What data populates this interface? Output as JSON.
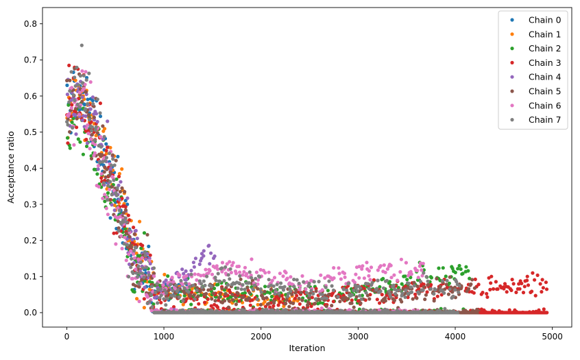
{
  "chart_data": {
    "type": "scatter",
    "title": "",
    "xlabel": "Iteration",
    "ylabel": "Acceptance ratio",
    "xlim": [
      -250,
      5200
    ],
    "ylim": [
      -0.04,
      0.845
    ],
    "xticks": [
      0,
      1000,
      2000,
      3000,
      4000,
      5000
    ],
    "xtick_labels": [
      "0",
      "1000",
      "2000",
      "3000",
      "4000",
      "5000"
    ],
    "yticks": [
      0.0,
      0.1,
      0.2,
      0.3,
      0.4,
      0.5,
      0.6,
      0.7,
      0.8
    ],
    "ytick_labels": [
      "0.0",
      "0.1",
      "0.2",
      "0.3",
      "0.4",
      "0.5",
      "0.6",
      "0.7",
      "0.8"
    ],
    "grid": false,
    "legend_position": "top-right",
    "series": [
      {
        "name": "Chain 0",
        "color": "#1f77b4",
        "last_iteration": 1250,
        "trend": [
          [
            0,
            0.58
          ],
          [
            150,
            0.58
          ],
          [
            300,
            0.5
          ],
          [
            500,
            0.35
          ],
          [
            700,
            0.17
          ],
          [
            900,
            0.06
          ],
          [
            1250,
            0.07
          ]
        ]
      },
      {
        "name": "Chain 1",
        "color": "#ff7f0e",
        "last_iteration": 2400,
        "trend": [
          [
            0,
            0.56
          ],
          [
            150,
            0.57
          ],
          [
            300,
            0.49
          ],
          [
            500,
            0.36
          ],
          [
            700,
            0.18
          ],
          [
            900,
            0.07
          ],
          [
            1500,
            0.05
          ],
          [
            2400,
            0.04
          ]
        ]
      },
      {
        "name": "Chain 2",
        "color": "#2ca02c",
        "last_iteration": 4150,
        "trend": [
          [
            0,
            0.52
          ],
          [
            150,
            0.55
          ],
          [
            300,
            0.45
          ],
          [
            500,
            0.3
          ],
          [
            700,
            0.14
          ],
          [
            900,
            0.06
          ],
          [
            2000,
            0.05
          ],
          [
            3000,
            0.05
          ],
          [
            3700,
            0.1
          ],
          [
            4150,
            0.11
          ]
        ]
      },
      {
        "name": "Chain 3",
        "color": "#d62728",
        "last_iteration": 4950,
        "trend": [
          [
            0,
            0.57
          ],
          [
            150,
            0.6
          ],
          [
            300,
            0.48
          ],
          [
            500,
            0.33
          ],
          [
            700,
            0.16
          ],
          [
            900,
            0.05
          ],
          [
            2000,
            0.03
          ],
          [
            3000,
            0.05
          ],
          [
            4000,
            0.07
          ],
          [
            4950,
            0.075
          ]
        ]
      },
      {
        "name": "Chain 4",
        "color": "#9467bd",
        "last_iteration": 1550,
        "trend": [
          [
            0,
            0.6
          ],
          [
            150,
            0.6
          ],
          [
            300,
            0.5
          ],
          [
            500,
            0.33
          ],
          [
            700,
            0.17
          ],
          [
            900,
            0.06
          ],
          [
            1300,
            0.12
          ],
          [
            1450,
            0.17
          ],
          [
            1550,
            0.15
          ]
        ]
      },
      {
        "name": "Chain 5",
        "color": "#8c564b",
        "last_iteration": 4250,
        "trend": [
          [
            0,
            0.57
          ],
          [
            150,
            0.62
          ],
          [
            300,
            0.5
          ],
          [
            500,
            0.33
          ],
          [
            700,
            0.15
          ],
          [
            900,
            0.06
          ],
          [
            1500,
            0.06
          ],
          [
            2500,
            0.03
          ],
          [
            3000,
            0.04
          ],
          [
            4100,
            0.07
          ],
          [
            4250,
            0.07
          ]
        ]
      },
      {
        "name": "Chain 6",
        "color": "#e377c2",
        "last_iteration": 3700,
        "trend": [
          [
            0,
            0.56
          ],
          [
            150,
            0.62
          ],
          [
            300,
            0.45
          ],
          [
            500,
            0.28
          ],
          [
            700,
            0.12
          ],
          [
            900,
            0.06
          ],
          [
            1600,
            0.13
          ],
          [
            2000,
            0.1
          ],
          [
            2500,
            0.08
          ],
          [
            3000,
            0.11
          ],
          [
            3700,
            0.12
          ]
        ]
      },
      {
        "name": "Chain 7",
        "color": "#7f7f7f",
        "last_iteration": 4050,
        "trend": [
          [
            0,
            0.57
          ],
          [
            150,
            0.63
          ],
          [
            300,
            0.52
          ],
          [
            500,
            0.35
          ],
          [
            700,
            0.14
          ],
          [
            900,
            0.05
          ],
          [
            1300,
            0.07
          ],
          [
            1600,
            0.1
          ],
          [
            2000,
            0.07
          ],
          [
            3000,
            0.06
          ],
          [
            4050,
            0.07
          ]
        ]
      }
    ],
    "zero_floor": {
      "value": 0.0,
      "from_iteration": 900,
      "to_iteration": 4950
    }
  }
}
